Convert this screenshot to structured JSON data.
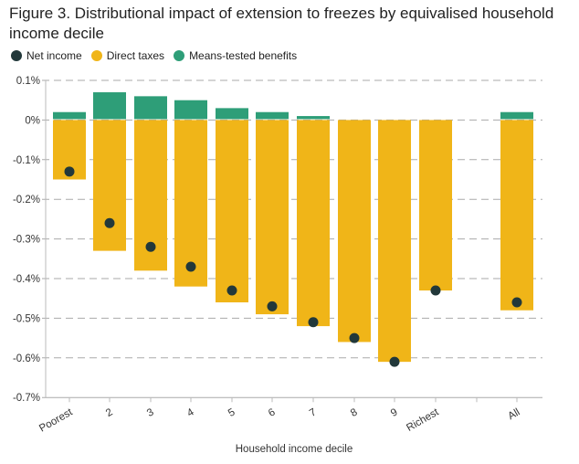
{
  "chart_data": {
    "type": "bar",
    "title": "Figure 3. Distributional impact of extension to freezes by equivalised household income decile",
    "xlabel": "Household income decile",
    "ylabel": "",
    "categories": [
      "Poorest",
      "2",
      "3",
      "4",
      "5",
      "6",
      "7",
      "8",
      "9",
      "Richest",
      "All"
    ],
    "ylim": [
      -0.7,
      0.1
    ],
    "yticks": [
      "0.1%",
      "0%",
      "-0.1%",
      "-0.2%",
      "-0.3%",
      "-0.4%",
      "-0.5%",
      "-0.6%",
      "-0.7%"
    ],
    "grid": true,
    "legend_position": "top-left",
    "series": [
      {
        "name": "Net income",
        "kind": "dot",
        "color": "#22383a",
        "values": [
          -0.13,
          -0.26,
          -0.32,
          -0.37,
          -0.43,
          -0.47,
          -0.51,
          -0.55,
          -0.61,
          -0.43,
          -0.46
        ]
      },
      {
        "name": "Direct taxes",
        "kind": "bar",
        "color": "#f0b518",
        "values": [
          -0.15,
          -0.33,
          -0.38,
          -0.42,
          -0.46,
          -0.49,
          -0.52,
          -0.56,
          -0.61,
          -0.43,
          -0.48
        ]
      },
      {
        "name": "Means-tested benefits",
        "kind": "bar",
        "color": "#2e9e78",
        "values": [
          0.02,
          0.07,
          0.06,
          0.05,
          0.03,
          0.02,
          0.01,
          0,
          0,
          0,
          0.02
        ]
      }
    ]
  }
}
